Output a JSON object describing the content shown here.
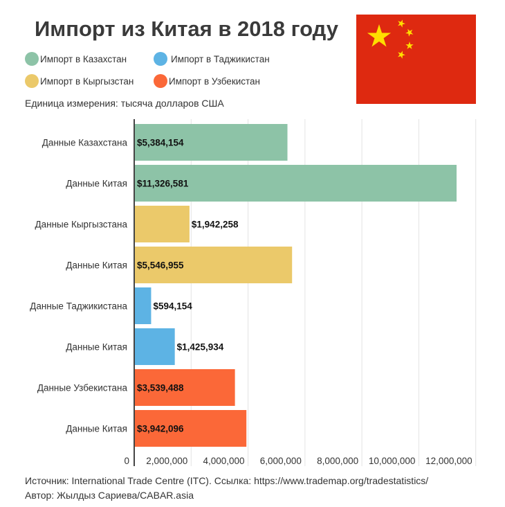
{
  "title": "Импорт из Китая в 2018 году",
  "legend": [
    {
      "label": "Импорт в Казахстан",
      "color": "#8DC3A7"
    },
    {
      "label": "Импорт в Таджикистан",
      "color": "#5DB3E4"
    },
    {
      "label": "Импорт в Кыргызстан",
      "color": "#EBC96A"
    },
    {
      "label": "Импорт в Узбекистан",
      "color": "#FB6838"
    }
  ],
  "unit": "Единица измерения: тысяча долларов США",
  "flag": {
    "name": "china-flag",
    "colors": {
      "field": "#DE2910",
      "stars": "#FFDE00"
    }
  },
  "chart_data": {
    "type": "bar",
    "orientation": "horizontal",
    "title": "Импорт из Китая в 2018 году",
    "categories": [
      "Данные Казахстана",
      "Данные Китая",
      "Данные Кыргызстана",
      "Данные Китая",
      "Данные Таджикистана",
      "Данные Китая",
      "Данные Узбекистана",
      "Данные Китая"
    ],
    "values": [
      5384154,
      11326581,
      1942258,
      5546955,
      594154,
      1425934,
      3539488,
      3942096
    ],
    "data_labels": [
      "$5,384,154",
      "$11,326,581",
      "$1,942,258",
      "$5,546,955",
      "$594,154",
      "$1,425,934",
      "$3,539,488",
      "$3,942,096"
    ],
    "bar_colors": [
      "#8DC3A7",
      "#8DC3A7",
      "#EBC96A",
      "#EBC96A",
      "#5DB3E4",
      "#5DB3E4",
      "#FB6838",
      "#FB6838"
    ],
    "xlim": [
      0,
      12000000
    ],
    "xticks": [
      0,
      2000000,
      4000000,
      6000000,
      8000000,
      10000000,
      12000000
    ],
    "xtick_labels": [
      "0",
      "2,000,000",
      "4,000,000",
      "6,000,000",
      "8,000,000",
      "10,000,000",
      "12,000,000"
    ],
    "grid": true,
    "legend_position": "top-left"
  },
  "footer": {
    "source": "Источник: International Trade Centre (ITC). Ссылка: https://www.trademap.org/tradestatistics/",
    "author": "Автор: Жылдыз Сариева/CABAR.asia"
  }
}
